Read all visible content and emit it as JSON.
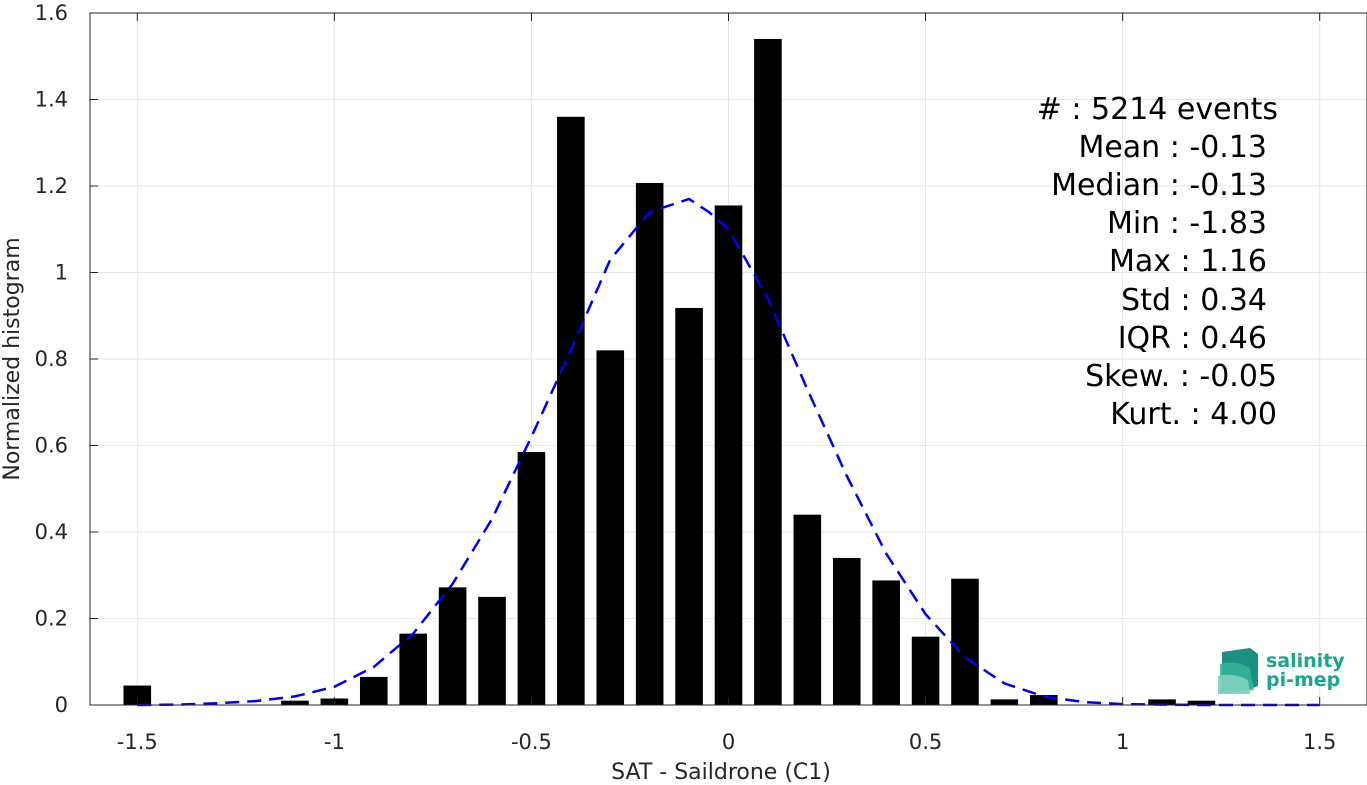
{
  "chart_data": {
    "type": "bar",
    "xlabel": "SAT - Saildrone (C1)",
    "ylabel": "Normalized histogram",
    "xlim": [
      -1.62,
      1.62
    ],
    "ylim": [
      0,
      1.6
    ],
    "xticks": [
      -1.5,
      -1,
      -0.5,
      0,
      0.5,
      1,
      1.5
    ],
    "xtick_labels": [
      "-1.5",
      "-1",
      "-0.5",
      "0",
      "0.5",
      "1",
      "1.5"
    ],
    "yticks": [
      0,
      0.2,
      0.4,
      0.6,
      0.8,
      1,
      1.2,
      1.4,
      1.6
    ],
    "ytick_labels": [
      "0",
      "0.2",
      "0.4",
      "0.6",
      "0.8",
      "1",
      "1.2",
      "1.4",
      "1.6"
    ],
    "grid": true,
    "bar_width": 0.07,
    "bar_color": "#000000",
    "bars": {
      "x": [
        -1.5,
        -1.1,
        -1.0,
        -0.9,
        -0.8,
        -0.7,
        -0.6,
        -0.5,
        -0.4,
        -0.3,
        -0.2,
        -0.1,
        0.0,
        0.1,
        0.2,
        0.3,
        0.4,
        0.5,
        0.6,
        0.7,
        0.8,
        1.1,
        1.2
      ],
      "values": [
        0.045,
        0.01,
        0.015,
        0.065,
        0.165,
        0.272,
        0.25,
        0.585,
        1.36,
        0.82,
        1.207,
        0.918,
        1.155,
        1.54,
        0.44,
        0.34,
        0.288,
        0.158,
        0.292,
        0.013,
        0.023,
        0.013,
        0.01
      ]
    },
    "fit_curve": {
      "style": "dashed",
      "color": "#0000ee",
      "x": [
        -1.5,
        -1.4,
        -1.3,
        -1.2,
        -1.1,
        -1.0,
        -0.9,
        -0.8,
        -0.7,
        -0.6,
        -0.5,
        -0.4,
        -0.3,
        -0.2,
        -0.15,
        -0.1,
        -0.05,
        0.0,
        0.1,
        0.2,
        0.3,
        0.4,
        0.5,
        0.6,
        0.7,
        0.8,
        0.9,
        1.0,
        1.1,
        1.2,
        1.3,
        1.4,
        1.5
      ],
      "y": [
        0.0,
        0.001,
        0.004,
        0.009,
        0.02,
        0.042,
        0.088,
        0.165,
        0.28,
        0.43,
        0.62,
        0.82,
        1.03,
        1.14,
        1.155,
        1.17,
        1.14,
        1.1,
        0.94,
        0.73,
        0.53,
        0.35,
        0.21,
        0.11,
        0.05,
        0.02,
        0.007,
        0.002,
        0.001,
        0.0,
        0.0,
        0.0,
        0.0
      ]
    }
  },
  "stats": [
    {
      "text": "#  : 5214 events"
    },
    {
      "text": "Mean : -0.13"
    },
    {
      "text": "Median : -0.13"
    },
    {
      "text": "Min : -1.83"
    },
    {
      "text": "Max : 1.16"
    },
    {
      "text": "Std : 0.34"
    },
    {
      "text": "IQR : 0.46"
    },
    {
      "text": "Skew. : -0.05"
    },
    {
      "text": "Kurt. : 4.00"
    }
  ],
  "logo": {
    "line1": "salinity",
    "line2": "pi-mep",
    "color": "#1aa68c"
  }
}
